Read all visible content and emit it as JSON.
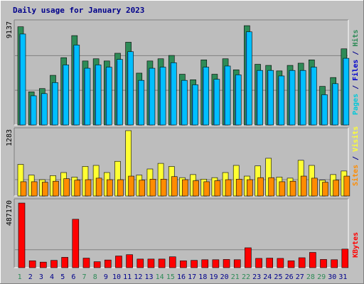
{
  "title": "Daily usage for January 2023",
  "colors": {
    "background": "#c0c0c0",
    "plot_bg": "#bdbdbd",
    "hits": "#2e8b57",
    "files": "#00bfff",
    "pages": "#00c8d8",
    "visits": "#ffff33",
    "sites": "#ff8c00",
    "kbytes": "#ff0000",
    "title": "#00008b",
    "weekend_label": "#2e8b57",
    "weekday_label": "#00008b"
  },
  "chart_data": [
    {
      "type": "bar",
      "name": "hits_files_pages",
      "ymax_label": "9137",
      "ymax": 9137,
      "right_label": [
        {
          "text": "Pages",
          "color": "#00c8d8"
        },
        {
          "text": " / ",
          "color": "#00008b"
        },
        {
          "text": "Files",
          "color": "#0000cd"
        },
        {
          "text": " / ",
          "color": "#00008b"
        },
        {
          "text": "Hits",
          "color": "#2e8b57"
        }
      ],
      "categories": [
        "1",
        "2",
        "3",
        "4",
        "5",
        "6",
        "7",
        "8",
        "9",
        "10",
        "11",
        "12",
        "13",
        "14",
        "15",
        "16",
        "17",
        "18",
        "19",
        "20",
        "21",
        "22",
        "23",
        "24",
        "25",
        "26",
        "27",
        "28",
        "29",
        "30",
        "31"
      ],
      "series": [
        {
          "name": "Hits",
          "values": [
            8900,
            3000,
            3300,
            4500,
            6100,
            8100,
            5800,
            6000,
            5800,
            6500,
            7500,
            4700,
            5800,
            6000,
            6300,
            4600,
            4100,
            5900,
            4600,
            6000,
            5000,
            9000,
            5500,
            5400,
            4900,
            5400,
            5600,
            5900,
            3500,
            4300,
            6900
          ]
        },
        {
          "name": "Files",
          "values": [
            8500,
            2900,
            3100,
            4100,
            5700,
            7500,
            5400,
            5700,
            5500,
            6200,
            6900,
            4300,
            5400,
            5500,
            5900,
            4300,
            3900,
            5500,
            4400,
            5600,
            4800,
            8700,
            5200,
            5200,
            4700,
            5200,
            5200,
            5500,
            3000,
            4000,
            6300
          ]
        },
        {
          "name": "Pages",
          "values": [
            2200,
            1100,
            1200,
            1600,
            2000,
            2600,
            2000,
            2100,
            2000,
            2300,
            2500,
            1700,
            2000,
            2100,
            2200,
            1700,
            1500,
            2000,
            1700,
            2100,
            1800,
            3000,
            1900,
            1900,
            1800,
            1900,
            2000,
            2000,
            1300,
            1600,
            2300
          ]
        }
      ]
    },
    {
      "type": "bar",
      "name": "visits_sites",
      "ymax_label": "1283",
      "ymax": 1283,
      "right_label": [
        {
          "text": "Sites",
          "color": "#ff8c00"
        },
        {
          "text": " / ",
          "color": "#00008b"
        },
        {
          "text": "Visits",
          "color": "#ffff33"
        }
      ],
      "categories": [
        "1",
        "2",
        "3",
        "4",
        "5",
        "6",
        "7",
        "8",
        "9",
        "10",
        "11",
        "12",
        "13",
        "14",
        "15",
        "16",
        "17",
        "18",
        "19",
        "20",
        "21",
        "22",
        "23",
        "24",
        "25",
        "26",
        "27",
        "28",
        "29",
        "30",
        "31"
      ],
      "series": [
        {
          "name": "Visits",
          "values": [
            620,
            410,
            320,
            400,
            460,
            370,
            580,
            600,
            460,
            680,
            1283,
            410,
            530,
            640,
            580,
            360,
            420,
            330,
            360,
            460,
            600,
            390,
            590,
            740,
            370,
            350,
            700,
            600,
            310,
            420,
            490
          ]
        },
        {
          "name": "Sites",
          "values": [
            280,
            280,
            270,
            290,
            340,
            310,
            320,
            350,
            320,
            320,
            390,
            310,
            330,
            330,
            380,
            320,
            300,
            280,
            300,
            320,
            330,
            320,
            360,
            360,
            280,
            290,
            390,
            350,
            270,
            310,
            390
          ]
        }
      ]
    },
    {
      "type": "bar",
      "name": "kbytes",
      "ymax_label": "487170",
      "ymax": 487170,
      "right_label": [
        {
          "text": "KBytes",
          "color": "#ff0000"
        }
      ],
      "categories": [
        "1",
        "2",
        "3",
        "4",
        "5",
        "6",
        "7",
        "8",
        "9",
        "10",
        "11",
        "12",
        "13",
        "14",
        "15",
        "16",
        "17",
        "18",
        "19",
        "20",
        "21",
        "22",
        "23",
        "24",
        "25",
        "26",
        "27",
        "28",
        "29",
        "30",
        "31"
      ],
      "series": [
        {
          "name": "KBytes",
          "values": [
            487170,
            52000,
            42000,
            55000,
            78000,
            365000,
            72000,
            45000,
            58000,
            88000,
            98000,
            65000,
            65000,
            65000,
            82000,
            52000,
            55000,
            60000,
            60000,
            62000,
            60000,
            150000,
            70000,
            72000,
            70000,
            52000,
            75000,
            115000,
            62000,
            60000,
            140000
          ]
        }
      ]
    }
  ],
  "weekend_days": [
    1,
    7,
    8,
    14,
    15,
    21,
    22,
    28,
    29
  ]
}
